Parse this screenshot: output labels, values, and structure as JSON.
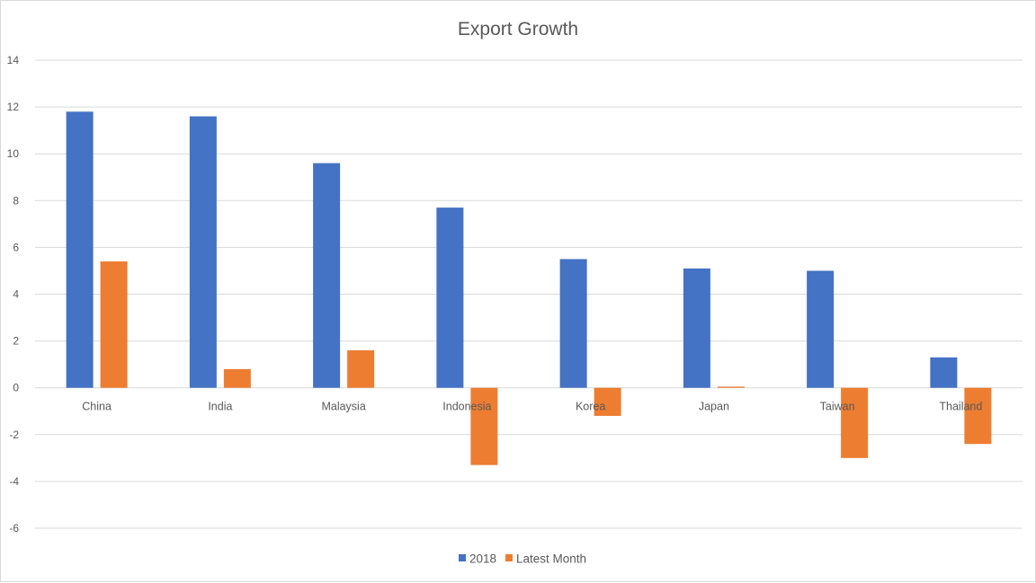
{
  "chart_data": {
    "type": "bar",
    "title": "Export Growth",
    "xlabel": "",
    "ylabel": "",
    "categories": [
      "China",
      "India",
      "Malaysia",
      "Indonesia",
      "Korea",
      "Japan",
      "Taiwan",
      "Thailand"
    ],
    "series": [
      {
        "name": "2018",
        "color": "#4472c4",
        "values": [
          11.8,
          11.6,
          9.6,
          7.7,
          5.5,
          5.1,
          5.0,
          1.3
        ]
      },
      {
        "name": "Latest Month",
        "color": "#ed7d31",
        "values": [
          5.4,
          0.8,
          1.6,
          -3.3,
          -1.2,
          0.05,
          -3.0,
          -2.4
        ]
      }
    ],
    "ylim": [
      -6,
      14
    ],
    "yticks": [
      14,
      12,
      10,
      8,
      6,
      4,
      2,
      0,
      -2,
      -4,
      -6
    ],
    "grid": true,
    "legend_position": "bottom"
  }
}
